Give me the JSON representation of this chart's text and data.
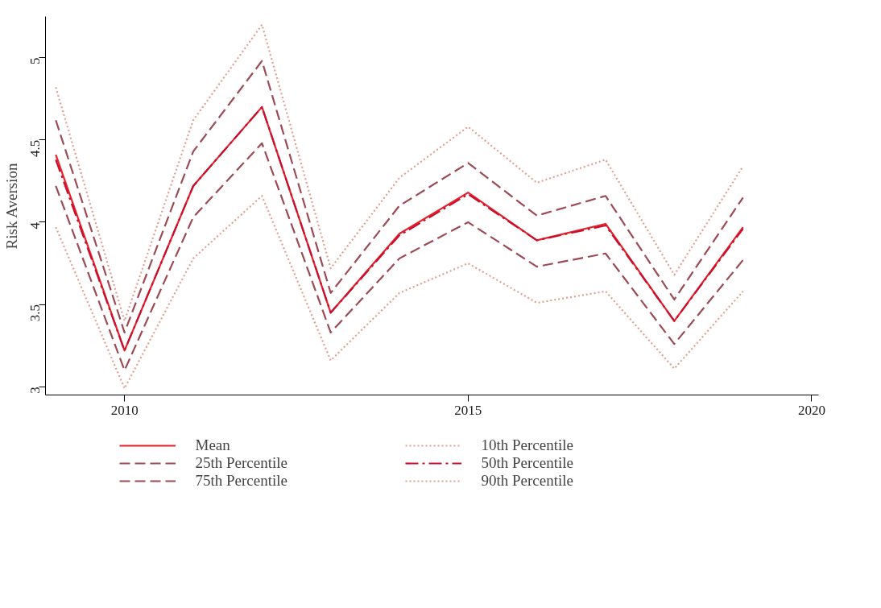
{
  "chart_data": {
    "type": "line",
    "ylabel": "Risk Aversion",
    "x": [
      2009,
      2010,
      2011,
      2012,
      2013,
      2014,
      2015,
      2016,
      2017,
      2018,
      2019
    ],
    "xlim": [
      2008.85,
      2020.1
    ],
    "xticks": [
      2010,
      2015,
      2020
    ],
    "ylim": [
      2.95,
      5.25
    ],
    "yticks": [
      3,
      3.5,
      4,
      4.5,
      5
    ],
    "grid": false,
    "legend": "bottom",
    "marker": "none",
    "series": [
      {
        "name": "Mean",
        "color": "#e8202a",
        "line_style": "solid",
        "values": [
          4.41,
          3.22,
          4.22,
          4.7,
          3.45,
          3.93,
          4.18,
          3.89,
          3.99,
          3.4,
          3.97
        ]
      },
      {
        "name": "25th Percentile",
        "color": "#9c4a54",
        "line_style": "dashed",
        "values": [
          4.22,
          3.1,
          4.03,
          4.48,
          3.33,
          3.78,
          4.0,
          3.73,
          3.81,
          3.26,
          3.77
        ]
      },
      {
        "name": "75th Percentile",
        "color": "#9c4a54",
        "line_style": "dashed",
        "values": [
          4.62,
          3.33,
          4.43,
          4.98,
          3.57,
          4.1,
          4.36,
          4.04,
          4.16,
          3.53,
          4.15
        ]
      },
      {
        "name": "10th Percentile",
        "color": "#e0a090",
        "line_style": "dotted",
        "values": [
          3.97,
          2.99,
          3.78,
          4.16,
          3.16,
          3.57,
          3.75,
          3.51,
          3.58,
          3.11,
          3.58
        ]
      },
      {
        "name": "50th Percentile",
        "color": "#c8102e",
        "line_style": "dashdot",
        "values": [
          4.38,
          3.22,
          4.22,
          4.7,
          3.45,
          3.92,
          4.17,
          3.89,
          3.98,
          3.4,
          3.96
        ]
      },
      {
        "name": "90th Percentile",
        "color": "#e0a090",
        "line_style": "dotted",
        "values": [
          4.82,
          3.4,
          4.62,
          5.2,
          3.72,
          4.27,
          4.58,
          4.24,
          4.38,
          3.68,
          4.34
        ]
      }
    ]
  }
}
